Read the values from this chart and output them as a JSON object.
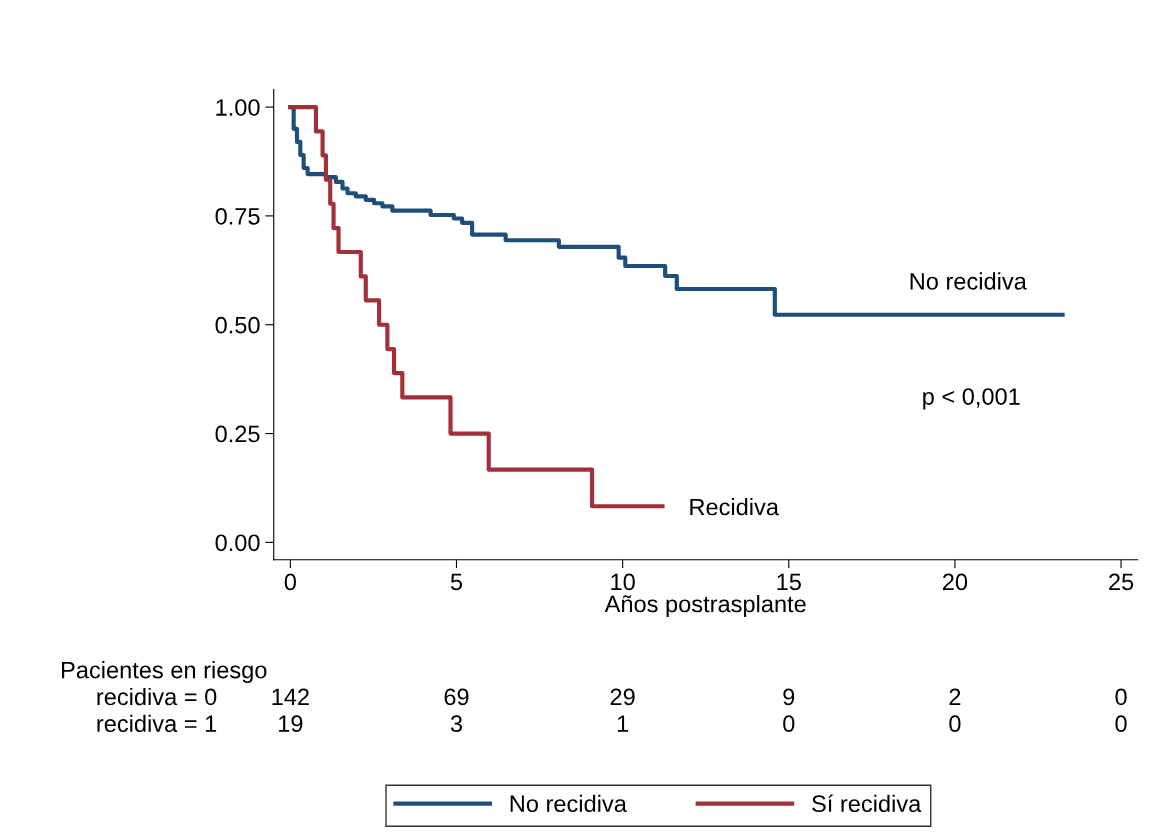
{
  "chart_data": {
    "type": "step",
    "xlabel": "Años postrasplante",
    "xlim": [
      -0.5,
      25.5
    ],
    "xticks": [
      0,
      5,
      10,
      15,
      20,
      25
    ],
    "ylim": [
      -0.04,
      1.04
    ],
    "yticks": [
      {
        "value": 0,
        "label": "0.00"
      },
      {
        "value": 0.25,
        "label": "0.25"
      },
      {
        "value": 0.5,
        "label": "0.50"
      },
      {
        "value": 0.75,
        "label": "0.75"
      },
      {
        "value": 1,
        "label": "1.00"
      }
    ],
    "grid": false,
    "legend": "bottom",
    "marker": "none",
    "line_style": "solid",
    "series": [
      {
        "name": "No recidiva",
        "color": "#1f4e79",
        "x": [
          0,
          0.1,
          0.2,
          0.3,
          0.4,
          0.52,
          1.07,
          1.37,
          1.57,
          1.72,
          1.97,
          2.27,
          2.52,
          2.77,
          3.07,
          4.22,
          4.92,
          5.17,
          5.47,
          6.48,
          8.08,
          9.88,
          10.08,
          11.28,
          11.63,
          14.58,
          23.24
        ],
        "values": [
          1,
          0.95,
          0.92,
          0.89,
          0.86,
          0.846,
          0.839,
          0.828,
          0.813,
          0.802,
          0.795,
          0.787,
          0.779,
          0.772,
          0.762,
          0.752,
          0.744,
          0.734,
          0.707,
          0.694,
          0.679,
          0.654,
          0.635,
          0.612,
          0.582,
          0.523,
          0.523
        ]
      },
      {
        "name": "Sí recidiva",
        "color": "#a0303a",
        "x": [
          0,
          0.77,
          0.97,
          1.07,
          1.2,
          1.3,
          1.45,
          2.12,
          2.27,
          2.67,
          2.92,
          3.12,
          3.37,
          4.82,
          5.97,
          9.08,
          11.2
        ],
        "values": [
          1,
          0.944,
          0.889,
          0.833,
          0.778,
          0.722,
          0.667,
          0.611,
          0.556,
          0.5,
          0.444,
          0.389,
          0.333,
          0.25,
          0.167,
          0.083,
          0.083
        ]
      }
    ],
    "annotations": [
      "No recidiva",
      "Recidiva",
      "p < 0,001",
      "Pacientes en riesgo",
      "recidiva = 0",
      "142",
      "69",
      "29",
      "9",
      "2",
      "0",
      "recidiva = 1",
      "19",
      "3",
      "1",
      "0",
      "0",
      "0"
    ]
  }
}
